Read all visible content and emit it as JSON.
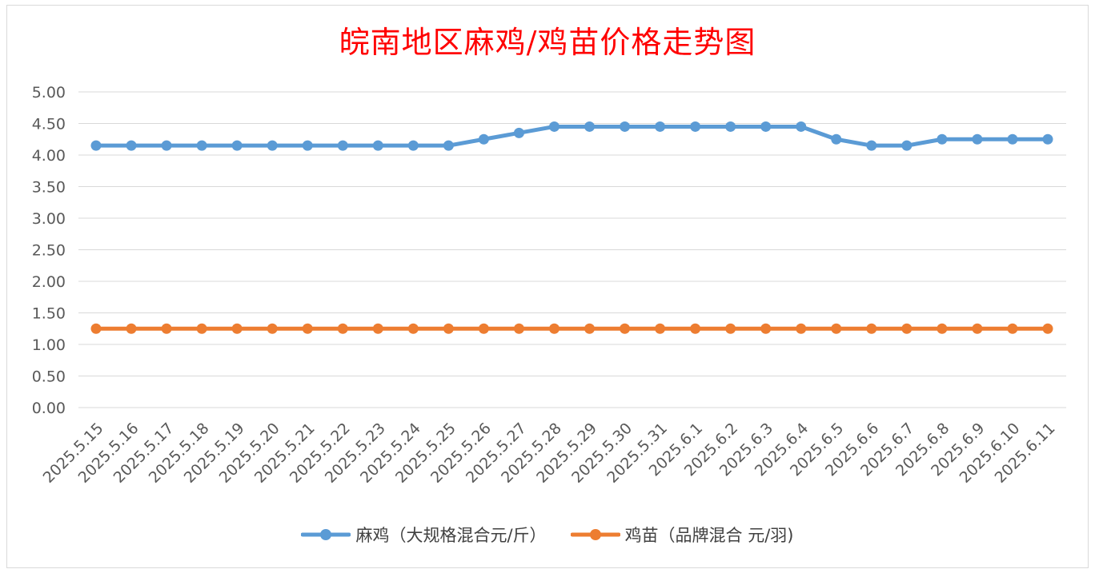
{
  "chart_data": {
    "type": "line",
    "title": "皖南地区麻鸡/鸡苗价格走势图",
    "title_color": "#ff0000",
    "xlabel": "",
    "ylabel": "",
    "ylim": [
      0,
      5
    ],
    "y_ticks": [
      "0.00",
      "0.50",
      "1.00",
      "1.50",
      "2.00",
      "2.50",
      "3.00",
      "3.50",
      "4.00",
      "4.50",
      "5.00"
    ],
    "grid": true,
    "legend_position": "bottom",
    "categories": [
      "2025.5.15",
      "2025.5.16",
      "2025.5.17",
      "2025.5.18",
      "2025.5.19",
      "2025.5.20",
      "2025.5.21",
      "2025.5.22",
      "2025.5.23",
      "2025.5.24",
      "2025.5.25",
      "2025.5.26",
      "2025.5.27",
      "2025.5.28",
      "2025.5.29",
      "2025.5.30",
      "2025.5.31",
      "2025.6.1",
      "2025.6.2",
      "2025.6.3",
      "2025.6.4",
      "2025.6.5",
      "2025.6.6",
      "2025.6.7",
      "2025.6.8",
      "2025.6.9",
      "2025.6.10",
      "2025.6.11"
    ],
    "series": [
      {
        "name": "麻鸡（大规格混合元/斤）",
        "color": "#5b9bd5",
        "values": [
          4.15,
          4.15,
          4.15,
          4.15,
          4.15,
          4.15,
          4.15,
          4.15,
          4.15,
          4.15,
          4.15,
          4.25,
          4.35,
          4.45,
          4.45,
          4.45,
          4.45,
          4.45,
          4.45,
          4.45,
          4.45,
          4.25,
          4.15,
          4.15,
          4.25,
          4.25,
          4.25,
          4.25
        ]
      },
      {
        "name": "鸡苗（品牌混合 元/羽)",
        "color": "#ed7d31",
        "values": [
          1.25,
          1.25,
          1.25,
          1.25,
          1.25,
          1.25,
          1.25,
          1.25,
          1.25,
          1.25,
          1.25,
          1.25,
          1.25,
          1.25,
          1.25,
          1.25,
          1.25,
          1.25,
          1.25,
          1.25,
          1.25,
          1.25,
          1.25,
          1.25,
          1.25,
          1.25,
          1.25,
          1.25
        ]
      }
    ]
  }
}
